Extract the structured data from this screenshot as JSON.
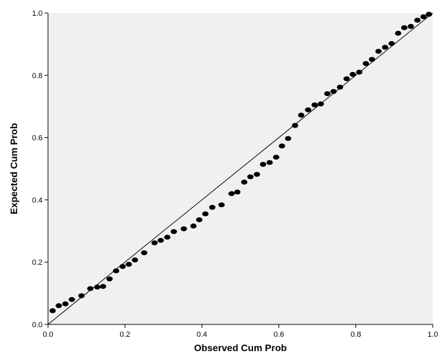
{
  "colors": {
    "plot_background": "#f0f0f0",
    "page_background": "#ffffff",
    "axis": "#000000",
    "marker": "#000000",
    "reference_line": "#000000"
  },
  "chart_data": {
    "type": "scatter",
    "title": "",
    "xlabel": "Observed Cum Prob",
    "ylabel": "Expected Cum Prob",
    "xlim": [
      0.0,
      1.0
    ],
    "ylim": [
      0.0,
      1.0
    ],
    "xticks": [
      "0.0",
      "0.2",
      "0.4",
      "0.6",
      "0.8",
      "1.0"
    ],
    "yticks": [
      "0.0",
      "0.2",
      "0.4",
      "0.6",
      "0.8",
      "1.0"
    ],
    "grid": false,
    "legend": "none",
    "reference_line": {
      "from": [
        0,
        0
      ],
      "to": [
        1,
        1
      ]
    },
    "x": [
      0.012,
      0.028,
      0.045,
      0.062,
      0.087,
      0.11,
      0.128,
      0.143,
      0.16,
      0.177,
      0.194,
      0.21,
      0.226,
      0.25,
      0.277,
      0.293,
      0.31,
      0.327,
      0.353,
      0.378,
      0.393,
      0.409,
      0.427,
      0.451,
      0.477,
      0.492,
      0.51,
      0.526,
      0.543,
      0.559,
      0.576,
      0.593,
      0.608,
      0.624,
      0.642,
      0.658,
      0.676,
      0.693,
      0.709,
      0.726,
      0.742,
      0.759,
      0.776,
      0.792,
      0.809,
      0.826,
      0.842,
      0.859,
      0.876,
      0.893,
      0.91,
      0.926,
      0.943,
      0.96,
      0.976,
      0.99
    ],
    "y": [
      0.044,
      0.06,
      0.066,
      0.08,
      0.092,
      0.115,
      0.12,
      0.122,
      0.146,
      0.172,
      0.186,
      0.193,
      0.207,
      0.23,
      0.262,
      0.27,
      0.28,
      0.298,
      0.307,
      0.316,
      0.336,
      0.355,
      0.376,
      0.384,
      0.42,
      0.425,
      0.457,
      0.474,
      0.482,
      0.514,
      0.52,
      0.537,
      0.573,
      0.597,
      0.639,
      0.672,
      0.689,
      0.705,
      0.708,
      0.741,
      0.748,
      0.762,
      0.789,
      0.803,
      0.81,
      0.838,
      0.851,
      0.877,
      0.89,
      0.902,
      0.935,
      0.953,
      0.957,
      0.977,
      0.988,
      0.996
    ]
  }
}
